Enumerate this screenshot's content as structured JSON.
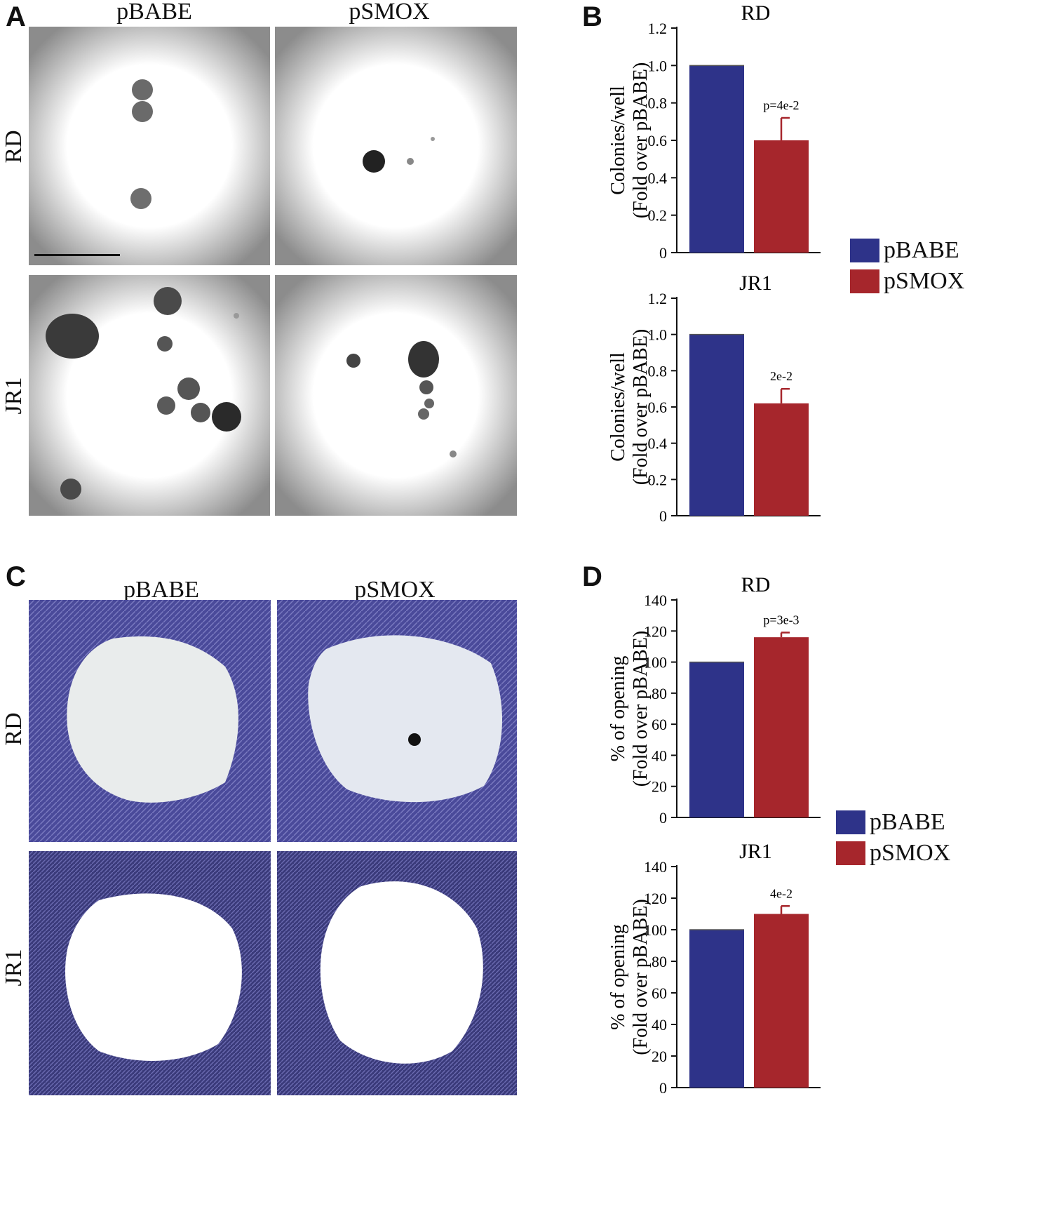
{
  "panels": {
    "a": {
      "letter": "A",
      "columns": [
        "pBABE",
        "pSMOX"
      ],
      "rows": [
        "RD",
        "JR1"
      ]
    },
    "b": {
      "letter": "B"
    },
    "c": {
      "letter": "C",
      "columns": [
        "pBABE",
        "pSMOX"
      ],
      "rows": [
        "RD",
        "JR1"
      ]
    },
    "d": {
      "letter": "D"
    }
  },
  "colors": {
    "pBABE": "#2e3389",
    "pSMOX": "#a6262c"
  },
  "legend_b": [
    {
      "label": "pBABE",
      "color": "#2e3389"
    },
    {
      "label": "pSMOX",
      "color": "#a6262c"
    }
  ],
  "legend_d": [
    {
      "label": "pBABE",
      "color": "#2e3389"
    },
    {
      "label": "pSMOX",
      "color": "#a6262c"
    }
  ],
  "chart_data": [
    {
      "id": "b-rd",
      "type": "bar",
      "title": "RD",
      "ylabel": [
        "Colonies/well",
        "(Fold over pBABE)"
      ],
      "categories": [
        "pBABE",
        "pSMOX"
      ],
      "values": [
        1.0,
        0.6
      ],
      "errors": [
        0.0,
        0.12
      ],
      "ylim": [
        0,
        1.2
      ],
      "yticks": [
        "0",
        "0.2",
        "0.4",
        "0.6",
        "0.8",
        "1.0",
        "1.2"
      ],
      "tickvals": [
        0,
        0.2,
        0.4,
        0.6,
        0.8,
        1.0,
        1.2
      ],
      "annotation": "p=4e-2"
    },
    {
      "id": "b-jr1",
      "type": "bar",
      "title": "JR1",
      "ylabel": [
        "Colonies/well",
        "(Fold over pBABE)"
      ],
      "categories": [
        "pBABE",
        "pSMOX"
      ],
      "values": [
        1.0,
        0.62
      ],
      "errors": [
        0.0,
        0.08
      ],
      "ylim": [
        0,
        1.2
      ],
      "yticks": [
        "0",
        "0.2",
        "0.4",
        "0.6",
        "0.8",
        "1.0",
        "1.2"
      ],
      "tickvals": [
        0,
        0.2,
        0.4,
        0.6,
        0.8,
        1.0,
        1.2
      ],
      "annotation": "2e-2"
    },
    {
      "id": "d-rd",
      "type": "bar",
      "title": "RD",
      "ylabel": [
        "% of opening",
        "(Fold over pBABE)"
      ],
      "categories": [
        "pBABE",
        "pSMOX"
      ],
      "values": [
        100,
        116
      ],
      "errors": [
        0,
        3
      ],
      "ylim": [
        0,
        140
      ],
      "yticks": [
        "0",
        "20",
        "40",
        "60",
        "80",
        "100",
        "120",
        "140"
      ],
      "tickvals": [
        0,
        20,
        40,
        60,
        80,
        100,
        120,
        140
      ],
      "annotation": "p=3e-3"
    },
    {
      "id": "d-jr1",
      "type": "bar",
      "title": "JR1",
      "ylabel": [
        "% of opening",
        "(Fold over pBABE)"
      ],
      "categories": [
        "pBABE",
        "pSMOX"
      ],
      "values": [
        100,
        110
      ],
      "errors": [
        0,
        5
      ],
      "ylim": [
        0,
        140
      ],
      "yticks": [
        "0",
        "20",
        "40",
        "60",
        "80",
        "100",
        "120",
        "140"
      ],
      "tickvals": [
        0,
        20,
        40,
        60,
        80,
        100,
        120,
        140
      ],
      "annotation": "4e-2"
    }
  ]
}
